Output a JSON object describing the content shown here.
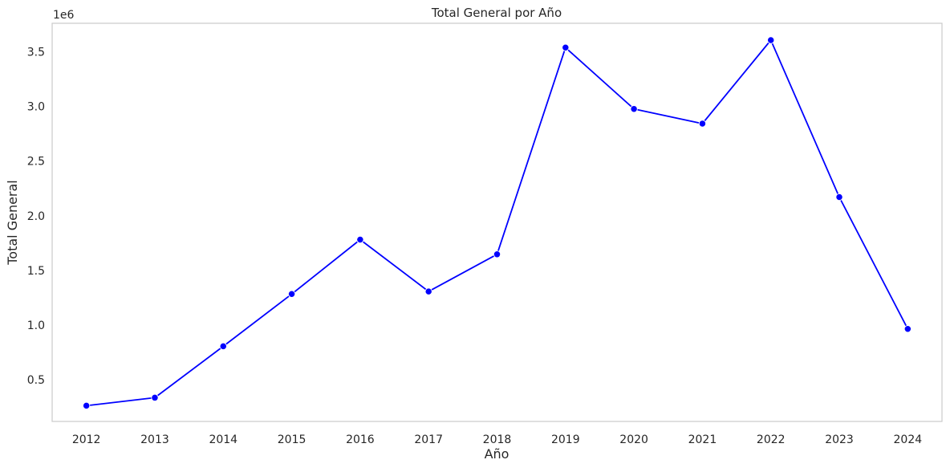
{
  "chart_data": {
    "type": "line",
    "title": "Total General por Año",
    "xlabel": "Año",
    "ylabel": "Total General",
    "y_offset_label": "1e6",
    "y_scale_factor": 1000000,
    "categories": [
      "2012",
      "2013",
      "2014",
      "2015",
      "2016",
      "2017",
      "2018",
      "2019",
      "2020",
      "2021",
      "2022",
      "2023",
      "2024"
    ],
    "series": [
      {
        "values": [
          264000,
          337000,
          807000,
          1285000,
          1782000,
          1308000,
          1648000,
          3538000,
          2977000,
          2843000,
          3606000,
          2171000,
          966000
        ],
        "color": "#0000ff",
        "marker": "circle"
      }
    ],
    "ylim": [
      120000,
      3760000
    ],
    "yticks": [
      500000,
      1000000,
      1500000,
      2000000,
      2500000,
      3000000,
      3500000
    ],
    "ytick_labels": [
      "0.5",
      "1.0",
      "1.5",
      "2.0",
      "2.5",
      "3.0",
      "3.5"
    ],
    "grid": false,
    "legend": "none"
  }
}
